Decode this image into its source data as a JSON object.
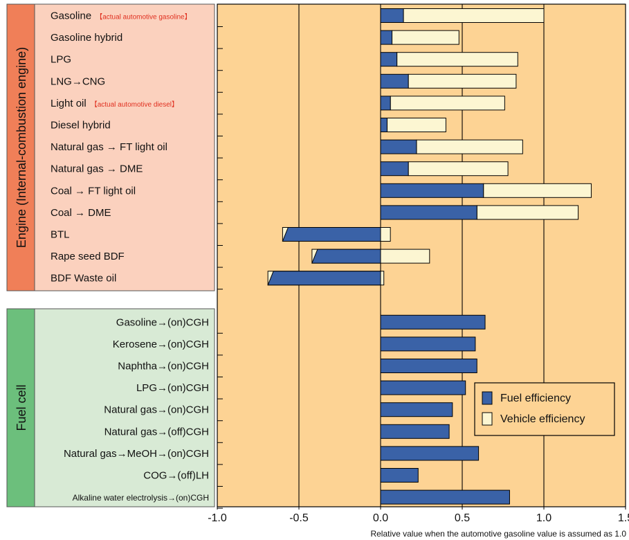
{
  "chart_data": {
    "type": "bar",
    "orientation": "horizontal",
    "stacked": true,
    "xlabel": "Relative value when the automotive gasoline value is assumed as 1.0",
    "xlim": [
      -1.0,
      1.5
    ],
    "xticks": [
      "-1.0",
      "-0.5",
      "0.0",
      "0.5",
      "1.0",
      "1.5"
    ],
    "grid": "vertical lines at major ticks",
    "legend_position": "lower-right",
    "series": [
      {
        "name": "Fuel efficiency",
        "color": "#3a62a7"
      },
      {
        "name": "Vehicle efficiency",
        "color": "#fcf6d2"
      }
    ],
    "groups": [
      {
        "name": "Engine (Internal-combustion engine)",
        "color": "#f07f58",
        "panel_color": "#fbd1be",
        "categories": [
          {
            "label": "Gasoline",
            "note": "【actual automotive gasoline】",
            "fuel": 0.14,
            "vehicle": 0.86
          },
          {
            "label": "Gasoline hybrid",
            "fuel": 0.07,
            "vehicle": 0.41
          },
          {
            "label": "LPG",
            "fuel": 0.1,
            "vehicle": 0.74
          },
          {
            "label": "LNG→CNG",
            "fuel": 0.17,
            "vehicle": 0.66
          },
          {
            "label": "Light oil",
            "note": "【actual automotive diesel】",
            "fuel": 0.06,
            "vehicle": 0.7
          },
          {
            "label": "Diesel hybrid",
            "fuel": 0.04,
            "vehicle": 0.36
          },
          {
            "label": "Natural gas → FT light oil",
            "fuel": 0.22,
            "vehicle": 0.65
          },
          {
            "label": "Natural gas → DME",
            "fuel": 0.17,
            "vehicle": 0.61
          },
          {
            "label": "Coal → FT light oil",
            "fuel": 0.63,
            "vehicle": 0.66
          },
          {
            "label": "Coal → DME",
            "fuel": 0.59,
            "vehicle": 0.62
          },
          {
            "label": "BTL",
            "fuel": -0.6,
            "vehicle": 0.66
          },
          {
            "label": "Rape seed BDF",
            "fuel": -0.42,
            "vehicle": 0.72
          },
          {
            "label": "BDF Waste oil",
            "fuel": -0.69,
            "vehicle": 0.71
          }
        ]
      },
      {
        "name": "Fuel cell",
        "color": "#6cbf7c",
        "panel_color": "#d8ead5",
        "categories": [
          {
            "label": "Gasoline→(on)CGH",
            "fuel": 0.64,
            "vehicle": 0
          },
          {
            "label": "Kerosene→(on)CGH",
            "fuel": 0.58,
            "vehicle": 0
          },
          {
            "label": "Naphtha→(on)CGH",
            "fuel": 0.59,
            "vehicle": 0
          },
          {
            "label": "LPG→(on)CGH",
            "fuel": 0.52,
            "vehicle": 0
          },
          {
            "label": "Natural gas→(on)CGH",
            "fuel": 0.44,
            "vehicle": 0
          },
          {
            "label": "Natural gas→(off)CGH",
            "fuel": 0.42,
            "vehicle": 0
          },
          {
            "label": "Natural gas→MeOH→(on)CGH",
            "fuel": 0.6,
            "vehicle": 0
          },
          {
            "label": "COG→(off)LH",
            "fuel": 0.23,
            "vehicle": 0
          },
          {
            "label": "Alkaline water electrolysis→(on)CGH",
            "fuel": 0.79,
            "vehicle": 0
          }
        ]
      }
    ]
  },
  "colors": {
    "plot_background": "#fdd394",
    "note_text": "#e03020",
    "axis": "#000000"
  }
}
